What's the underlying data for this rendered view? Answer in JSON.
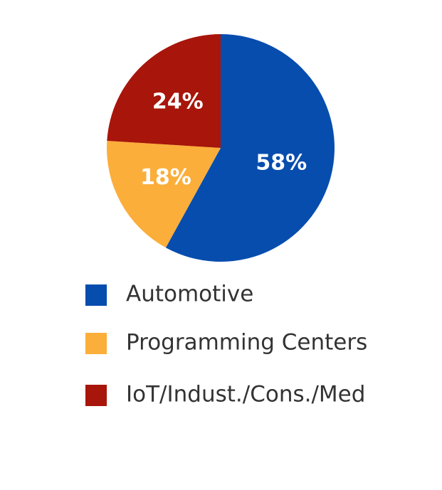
{
  "chart_data": {
    "type": "pie",
    "categories": [
      "Automotive",
      "Programming Centers",
      "IoT/Indust./Cons./Med"
    ],
    "values": [
      58,
      18,
      24
    ],
    "value_labels": [
      "58%",
      "18%",
      "24%"
    ],
    "colors": [
      "#074dae",
      "#fbae3a",
      "#a8150a"
    ],
    "legend": "bottom"
  }
}
